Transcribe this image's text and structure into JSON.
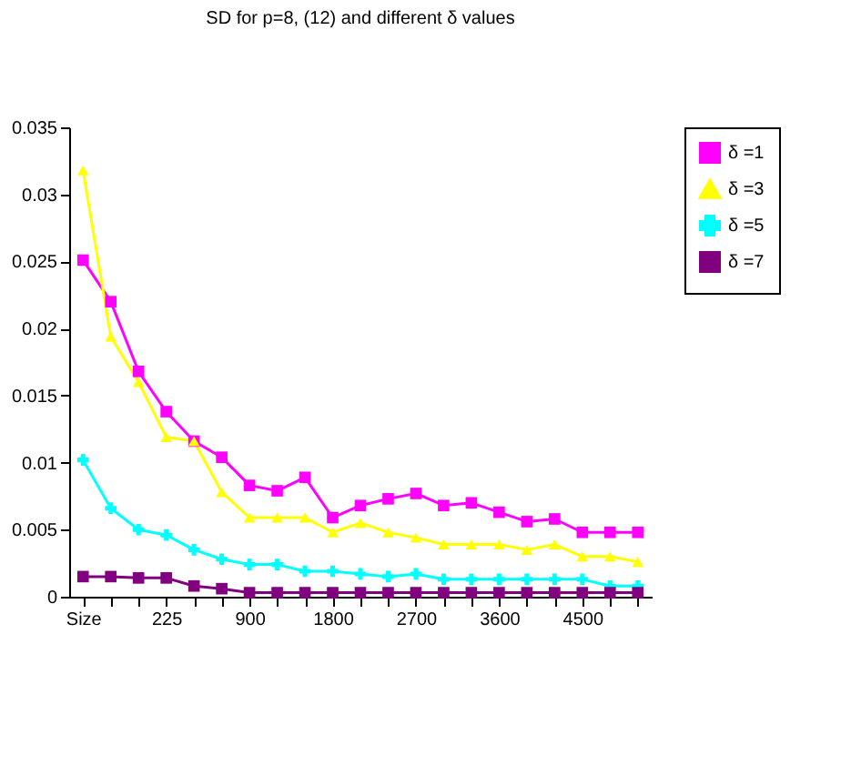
{
  "chart_data": {
    "type": "line",
    "title": "SD for p=8, (12) and different δ values",
    "categories": [
      "Size",
      null,
      null,
      "225",
      null,
      null,
      "900",
      null,
      null,
      "1800",
      null,
      null,
      "2700",
      null,
      null,
      "3600",
      null,
      null,
      "4500",
      null,
      null
    ],
    "series": [
      {
        "name": "δ =1",
        "color": "#ff00ff",
        "marker": "square",
        "values": [
          0.0251,
          0.022,
          0.0168,
          0.0138,
          0.0116,
          0.0104,
          0.0083,
          0.0079,
          0.0089,
          0.0059,
          0.0068,
          0.0073,
          0.0077,
          0.0068,
          0.007,
          0.0063,
          0.0056,
          0.0058,
          0.0048,
          0.0048,
          0.0048
        ]
      },
      {
        "name": "δ =3",
        "color": "#ffff00",
        "marker": "triangle",
        "values": [
          0.0318,
          0.0194,
          0.016,
          0.0119,
          0.0116,
          0.0078,
          0.0059,
          0.0059,
          0.0059,
          0.0048,
          0.0055,
          0.0048,
          0.0044,
          0.0039,
          0.0039,
          0.0039,
          0.0035,
          0.0039,
          0.003,
          0.003,
          0.0026
        ]
      },
      {
        "name": "δ =5",
        "color": "#00ffff",
        "marker": "cross",
        "values": [
          0.0102,
          0.0066,
          0.005,
          0.0046,
          0.0035,
          0.0028,
          0.0024,
          0.0024,
          0.0019,
          0.0019,
          0.0017,
          0.0015,
          0.0017,
          0.0013,
          0.0013,
          0.0013,
          0.0013,
          0.0013,
          0.0013,
          0.0008,
          0.0008
        ]
      },
      {
        "name": "δ =7",
        "color": "#800080",
        "marker": "square",
        "values": [
          0.0015,
          0.0015,
          0.0014,
          0.0014,
          0.0008,
          0.0006,
          0.0003,
          0.0003,
          0.0003,
          0.0003,
          0.0003,
          0.0003,
          0.0003,
          0.0003,
          0.0003,
          0.0003,
          0.0003,
          0.0003,
          0.0003,
          0.0003,
          0.0003
        ]
      }
    ],
    "ylim": [
      0,
      0.035
    ],
    "yticks": [
      0,
      0.005,
      0.01,
      0.015,
      0.02,
      0.025,
      0.03,
      0.035
    ],
    "grid": false,
    "legend": "right",
    "line_style": "solid"
  }
}
